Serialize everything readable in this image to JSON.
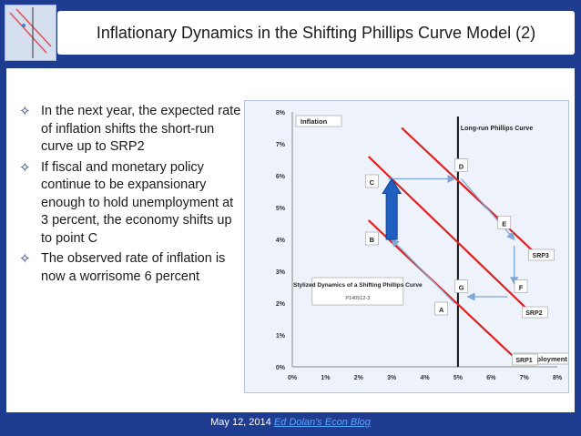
{
  "slide": {
    "title": "Inflationary Dynamics in the Shifting Phillips Curve Model (2)",
    "bullets": [
      "In the next year, the expected rate of inflation shifts the short-run curve up to SRP2",
      "If fiscal and monetary policy continue to be expansionary enough to hold unemployment at 3 percent, the economy shifts up to point C",
      "The observed rate of inflation is now a worrisome 6 percent"
    ],
    "bullet_icon": "four-pointed-star-icon",
    "footer_date": "May 12, 2014",
    "footer_link": "Ed Dolan's Econ Blog"
  },
  "chart_data": {
    "type": "line",
    "title": "Stylized Dynamics of a Shifting Phillips Curve",
    "subtitle": "P140512-3",
    "xlabel": "Unemployment",
    "ylabel": "Inflation",
    "xlim": [
      0,
      8
    ],
    "ylim": [
      0,
      8
    ],
    "x_ticks": [
      "0%",
      "1%",
      "2%",
      "3%",
      "4%",
      "5%",
      "6%",
      "7%",
      "8%"
    ],
    "y_ticks": [
      "0%",
      "1%",
      "2%",
      "3%",
      "4%",
      "5%",
      "6%",
      "7%",
      "8%"
    ],
    "series": [
      {
        "name": "SRP1",
        "color": "#e02020",
        "points": [
          [
            2.3,
            4.6
          ],
          [
            6.8,
            0.2
          ]
        ]
      },
      {
        "name": "SRP2",
        "color": "#e02020",
        "points": [
          [
            2.3,
            6.6
          ],
          [
            7.1,
            1.8
          ]
        ]
      },
      {
        "name": "SRP3",
        "color": "#e02020",
        "points": [
          [
            3.3,
            7.5
          ],
          [
            7.3,
            3.6
          ]
        ]
      }
    ],
    "vertical_line": {
      "name": "Long-run Phillips Curve",
      "x": 5,
      "color": "#111111"
    },
    "points": [
      {
        "label": "A",
        "x": 4.5,
        "y": 1.8
      },
      {
        "label": "B",
        "x": 2.4,
        "y": 4.0
      },
      {
        "label": "C",
        "x": 2.4,
        "y": 5.8
      },
      {
        "label": "D",
        "x": 5.1,
        "y": 6.3
      },
      {
        "label": "E",
        "x": 6.4,
        "y": 4.5
      },
      {
        "label": "F",
        "x": 6.9,
        "y": 2.5
      },
      {
        "label": "G",
        "x": 5.1,
        "y": 2.5
      }
    ],
    "arrows": [
      {
        "from": [
          4.9,
          2.0
        ],
        "to": [
          3.0,
          4.0
        ],
        "color": "#7fa6d6"
      },
      {
        "from": [
          2.9,
          5.9
        ],
        "to": [
          4.9,
          5.9
        ],
        "color": "#7fa6d6"
      },
      {
        "from": [
          5.1,
          5.9
        ],
        "to": [
          6.7,
          4.0
        ],
        "color": "#7fa6d6"
      },
      {
        "from": [
          6.7,
          3.8
        ],
        "to": [
          6.7,
          2.6
        ],
        "color": "#7fa6d6"
      },
      {
        "from": [
          6.5,
          2.2
        ],
        "to": [
          5.3,
          2.2
        ],
        "color": "#7fa6d6"
      }
    ],
    "big_arrow": {
      "x": 3.0,
      "from_y": 4.0,
      "to_y": 5.9,
      "color": "#1f5fbf"
    },
    "label_srp": [
      "SRP1",
      "SRP2",
      "SRP3"
    ],
    "grid": false,
    "legend": "none"
  }
}
